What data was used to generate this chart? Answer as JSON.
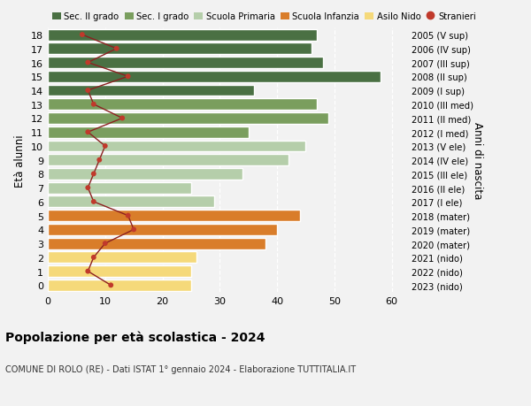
{
  "ages": [
    18,
    17,
    16,
    15,
    14,
    13,
    12,
    11,
    10,
    9,
    8,
    7,
    6,
    5,
    4,
    3,
    2,
    1,
    0
  ],
  "bar_values": [
    47,
    46,
    48,
    58,
    36,
    47,
    49,
    35,
    45,
    42,
    34,
    25,
    29,
    44,
    40,
    38,
    26,
    25,
    25
  ],
  "bar_colors": [
    "#4a7043",
    "#4a7043",
    "#4a7043",
    "#4a7043",
    "#4a7043",
    "#7a9e5e",
    "#7a9e5e",
    "#7a9e5e",
    "#b5ceaa",
    "#b5ceaa",
    "#b5ceaa",
    "#b5ceaa",
    "#b5ceaa",
    "#d97d2a",
    "#d97d2a",
    "#d97d2a",
    "#f5d97a",
    "#f5d97a",
    "#f5d97a"
  ],
  "stranieri_values": [
    6,
    12,
    7,
    14,
    7,
    8,
    13,
    7,
    10,
    9,
    8,
    7,
    8,
    14,
    15,
    10,
    8,
    7,
    11
  ],
  "right_labels": [
    "2005 (V sup)",
    "2006 (IV sup)",
    "2007 (III sup)",
    "2008 (II sup)",
    "2009 (I sup)",
    "2010 (III med)",
    "2011 (II med)",
    "2012 (I med)",
    "2013 (V ele)",
    "2014 (IV ele)",
    "2015 (III ele)",
    "2016 (II ele)",
    "2017 (I ele)",
    "2018 (mater)",
    "2019 (mater)",
    "2020 (mater)",
    "2021 (nido)",
    "2022 (nido)",
    "2023 (nido)"
  ],
  "xlim": [
    0,
    63
  ],
  "xticks": [
    0,
    10,
    20,
    30,
    40,
    50,
    60
  ],
  "ylabel": "Età alunni",
  "right_ylabel": "Anni di nascita",
  "title": "Popolazione per età scolastica - 2024",
  "subtitle": "COMUNE DI ROLO (RE) - Dati ISTAT 1° gennaio 2024 - Elaborazione TUTTITALIA.IT",
  "legend_labels": [
    "Sec. II grado",
    "Sec. I grado",
    "Scuola Primaria",
    "Scuola Infanzia",
    "Asilo Nido",
    "Stranieri"
  ],
  "legend_colors": [
    "#4a7043",
    "#7a9e5e",
    "#b5ceaa",
    "#d97d2a",
    "#f5d97a",
    "#c0392b"
  ],
  "bg_color": "#f2f2f2",
  "stranieri_color": "#c0392b",
  "stranieri_line_color": "#8b2020"
}
